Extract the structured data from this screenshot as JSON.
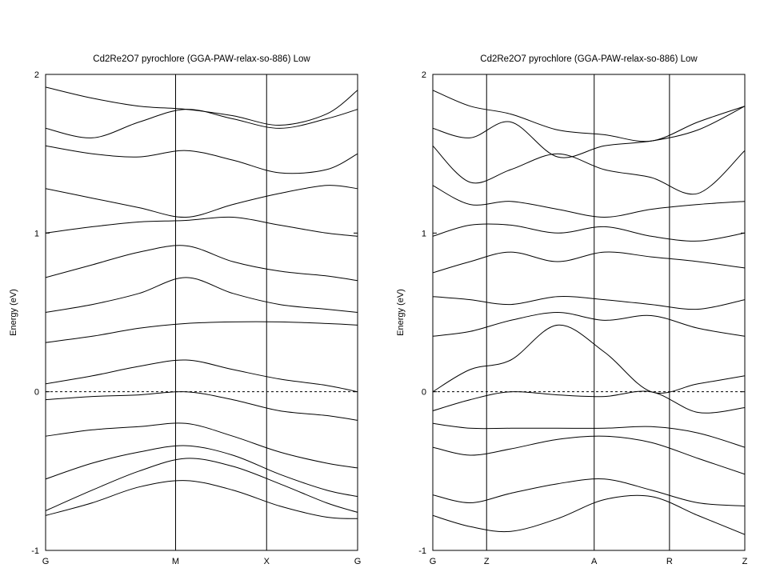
{
  "chart_data": [
    {
      "type": "line",
      "title": "Cd2Re2O7 pyrochlore (GGA-PAW-relax-so-886) Low",
      "ylabel": "Energy (eV)",
      "ylim": [
        -1,
        2
      ],
      "yticks": [
        -1,
        0,
        1,
        2
      ],
      "path_labels": [
        "G",
        "M",
        "X",
        "G"
      ],
      "path_segment_weights": [
        1,
        0.7,
        0.7
      ],
      "fermi_level": 0,
      "band_sample": {
        "x": [
          0,
          0.15,
          0.3,
          0.45,
          0.6,
          0.75,
          0.9,
          1.0
        ],
        "bands": [
          [
            -0.78,
            -0.7,
            -0.6,
            -0.56,
            -0.62,
            -0.72,
            -0.79,
            -0.8
          ],
          [
            -0.75,
            -0.62,
            -0.5,
            -0.42,
            -0.47,
            -0.58,
            -0.7,
            -0.76
          ],
          [
            -0.55,
            -0.45,
            -0.38,
            -0.34,
            -0.4,
            -0.52,
            -0.62,
            -0.66
          ],
          [
            -0.28,
            -0.24,
            -0.22,
            -0.2,
            -0.28,
            -0.38,
            -0.45,
            -0.48
          ],
          [
            -0.05,
            -0.03,
            -0.02,
            0.0,
            -0.05,
            -0.12,
            -0.15,
            -0.18
          ],
          [
            0.05,
            0.1,
            0.16,
            0.2,
            0.14,
            0.08,
            0.04,
            0.0
          ],
          [
            0.31,
            0.35,
            0.4,
            0.43,
            0.44,
            0.44,
            0.43,
            0.42
          ],
          [
            0.5,
            0.55,
            0.62,
            0.72,
            0.62,
            0.55,
            0.52,
            0.5
          ],
          [
            0.72,
            0.8,
            0.88,
            0.92,
            0.82,
            0.76,
            0.73,
            0.7
          ],
          [
            1.0,
            1.04,
            1.07,
            1.08,
            1.1,
            1.05,
            1.0,
            0.98
          ],
          [
            1.28,
            1.22,
            1.16,
            1.1,
            1.18,
            1.25,
            1.3,
            1.28
          ],
          [
            1.55,
            1.5,
            1.48,
            1.52,
            1.46,
            1.38,
            1.4,
            1.5
          ],
          [
            1.66,
            1.6,
            1.7,
            1.78,
            1.72,
            1.66,
            1.72,
            1.78
          ],
          [
            1.92,
            1.85,
            1.8,
            1.78,
            1.74,
            1.68,
            1.75,
            1.9
          ]
        ]
      }
    },
    {
      "type": "line",
      "title": "Cd2Re2O7 pyrochlore (GGA-PAW-relax-so-886) Low",
      "ylabel": "Energy (eV)",
      "ylim": [
        -1,
        2
      ],
      "yticks": [
        -1,
        0,
        1,
        2
      ],
      "path_labels": [
        "G",
        "Z",
        "A",
        "R",
        "Z"
      ],
      "path_segment_weights": [
        0.5,
        1,
        0.7,
        0.7
      ],
      "fermi_level": 0,
      "band_sample": {
        "x": [
          0,
          0.12,
          0.25,
          0.4,
          0.55,
          0.7,
          0.85,
          1.0
        ],
        "bands": [
          [
            -0.78,
            -0.85,
            -0.88,
            -0.8,
            -0.68,
            -0.66,
            -0.78,
            -0.9
          ],
          [
            -0.65,
            -0.7,
            -0.64,
            -0.58,
            -0.55,
            -0.62,
            -0.7,
            -0.72
          ],
          [
            -0.35,
            -0.4,
            -0.36,
            -0.3,
            -0.28,
            -0.32,
            -0.42,
            -0.52
          ],
          [
            -0.2,
            -0.23,
            -0.23,
            -0.23,
            -0.23,
            -0.22,
            -0.26,
            -0.35
          ],
          [
            -0.12,
            -0.05,
            0.0,
            -0.02,
            -0.03,
            0.0,
            -0.13,
            -0.1
          ],
          [
            0.0,
            0.14,
            0.2,
            0.42,
            0.25,
            0.0,
            0.05,
            0.1
          ],
          [
            0.35,
            0.38,
            0.45,
            0.5,
            0.45,
            0.48,
            0.4,
            0.35
          ],
          [
            0.6,
            0.58,
            0.55,
            0.6,
            0.58,
            0.55,
            0.52,
            0.58
          ],
          [
            0.75,
            0.82,
            0.88,
            0.82,
            0.88,
            0.85,
            0.82,
            0.78
          ],
          [
            0.98,
            1.05,
            1.05,
            1.0,
            1.04,
            0.98,
            0.95,
            1.0
          ],
          [
            1.3,
            1.18,
            1.2,
            1.15,
            1.1,
            1.15,
            1.18,
            1.2
          ],
          [
            1.55,
            1.32,
            1.4,
            1.5,
            1.4,
            1.35,
            1.25,
            1.52
          ],
          [
            1.66,
            1.6,
            1.7,
            1.48,
            1.55,
            1.58,
            1.65,
            1.8
          ],
          [
            1.9,
            1.8,
            1.75,
            1.65,
            1.62,
            1.58,
            1.7,
            1.8
          ]
        ]
      }
    }
  ]
}
